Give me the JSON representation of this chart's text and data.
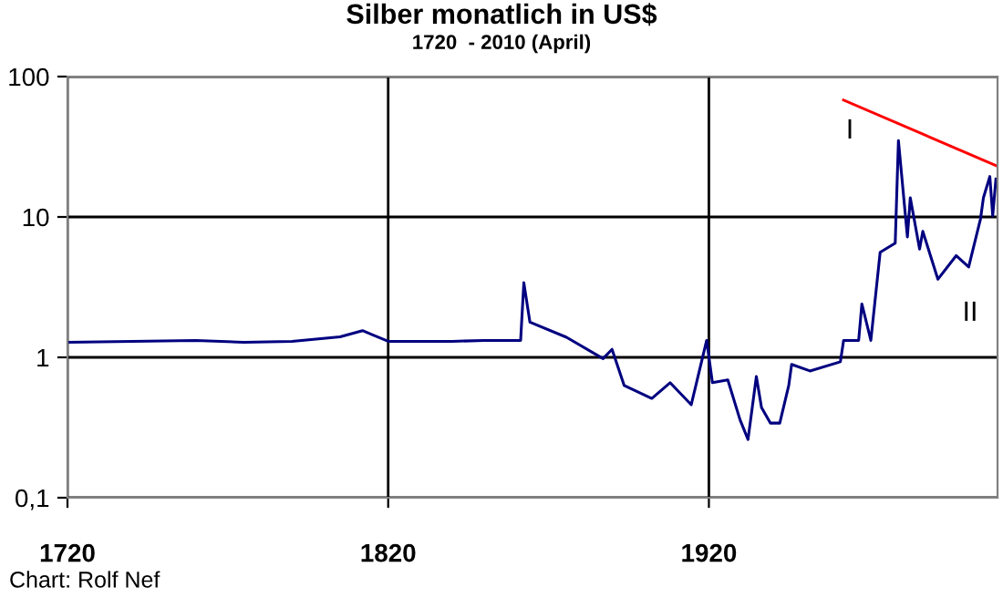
{
  "chart_data": {
    "type": "line",
    "title": "Silber monatlich in US$",
    "subtitle": "1720  - 2010 (April)",
    "log": "y",
    "xlim": [
      1720,
      2010
    ],
    "ylim": [
      0.1,
      100
    ],
    "xticks": [
      1720,
      1820,
      1920
    ],
    "yticks": [
      {
        "value": 0.1,
        "label": "0,1"
      },
      1,
      10,
      100
    ],
    "grid": true,
    "series": [
      {
        "color": "#000080",
        "x": [
          1720,
          1740,
          1760,
          1775,
          1790,
          1805,
          1812,
          1815,
          1820,
          1840,
          1850,
          1861.3,
          1862.3,
          1864.2,
          1875.6,
          1887,
          1889.8,
          1893.6,
          1902.2,
          1907.9,
          1914.5,
          1919.3,
          1921.1,
          1925.9,
          1929.7,
          1932.2,
          1934.8,
          1936.4,
          1939.2,
          1942.1,
          1944.9,
          1945.8,
          1951.5,
          1961,
          1962,
          1966.7,
          1967.7,
          1970.5,
          1973.4,
          1978.1,
          1979.1,
          1981.9,
          1982.8,
          1985.7,
          1986.7,
          1991.4,
          1997.1,
          2001,
          2004.7,
          2005.6,
          2007.6,
          2008.5,
          2009.5
        ],
        "values": [
          1.28,
          1.3,
          1.32,
          1.28,
          1.3,
          1.4,
          1.55,
          1.45,
          1.3,
          1.3,
          1.32,
          1.32,
          3.4,
          1.78,
          1.39,
          0.98,
          1.14,
          0.63,
          0.51,
          0.66,
          0.46,
          1.32,
          0.66,
          0.69,
          0.36,
          0.26,
          0.73,
          0.44,
          0.34,
          0.34,
          0.63,
          0.89,
          0.8,
          0.93,
          1.32,
          1.32,
          2.4,
          1.32,
          5.6,
          6.5,
          35,
          7.2,
          13.7,
          5.9,
          7.9,
          3.6,
          5.3,
          4.4,
          9.7,
          13.7,
          19.4,
          10.2,
          18.6
        ]
      },
      {
        "color": "#ff0000",
        "x": [
          1962,
          2010
        ],
        "values": [
          68,
          23
        ]
      }
    ],
    "annotations": [
      "I",
      "II",
      "Chart: Rolf Nef"
    ]
  }
}
